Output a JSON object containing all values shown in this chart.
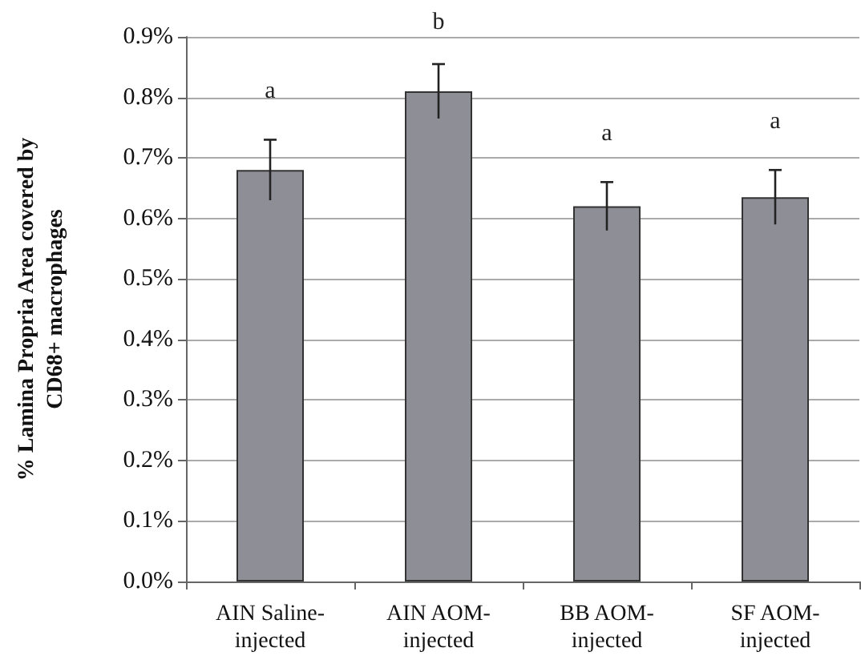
{
  "chart_data": {
    "type": "bar",
    "ylabel": "% Lamina Propria Area covered by\nCD68+ macrophages",
    "categories": [
      "AIN Saline-\ninjected",
      "AIN AOM-\ninjected",
      "BB AOM-\ninjected",
      "SF AOM-\ninjected"
    ],
    "values": [
      0.68,
      0.81,
      0.62,
      0.635
    ],
    "errors": [
      0.05,
      0.045,
      0.04,
      0.045
    ],
    "color": "#8e8e96",
    "ylim": [
      0,
      0.9
    ],
    "yticks": [
      {
        "value": 0,
        "label": "0.0%"
      },
      {
        "value": 0.1,
        "label": "0.1%"
      },
      {
        "value": 0.2,
        "label": "0.2%"
      },
      {
        "value": 0.3,
        "label": "0.3%"
      },
      {
        "value": 0.4,
        "label": "0.4%"
      },
      {
        "value": 0.5,
        "label": "0.5%"
      },
      {
        "value": 0.6,
        "label": "0.6%"
      },
      {
        "value": 0.7,
        "label": "0.7%"
      },
      {
        "value": 0.8,
        "label": "0.8%"
      },
      {
        "value": 0.9,
        "label": "0.9%"
      }
    ],
    "annotations": [
      "a",
      "b",
      "a",
      "a"
    ],
    "grid": "y"
  }
}
